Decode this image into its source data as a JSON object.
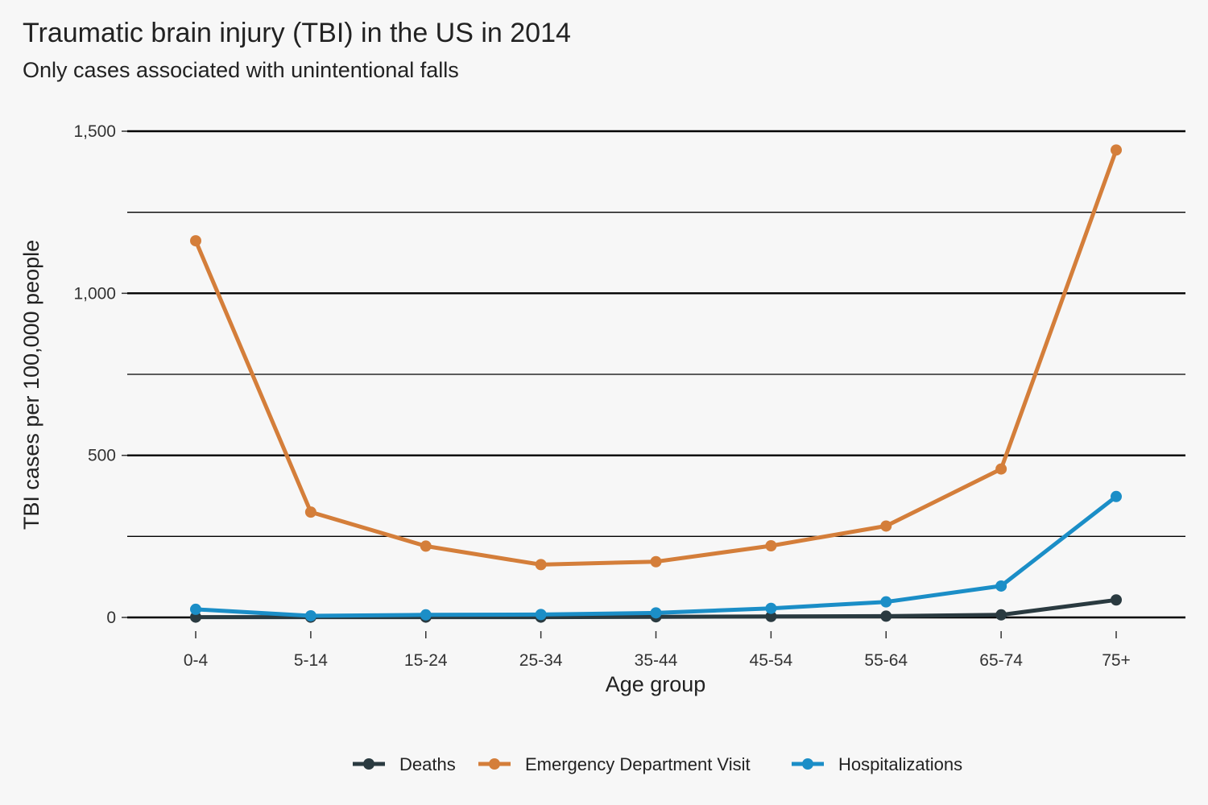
{
  "chart_data": {
    "type": "line",
    "title": "Traumatic brain injury (TBI) in the US in 2014",
    "subtitle": "Only cases associated with unintentional falls",
    "xlabel": "Age group",
    "ylabel": "TBI cases per 100,000 people",
    "categories": [
      "0-4",
      "5-14",
      "15-24",
      "25-34",
      "35-44",
      "45-54",
      "55-64",
      "65-74",
      "75+"
    ],
    "ylim": [
      0,
      1500
    ],
    "yticks": [
      0,
      500,
      1000,
      1500
    ],
    "ytick_labels": [
      "0",
      "500",
      "1,000",
      "1,500"
    ],
    "grid": true,
    "legend_position": "bottom",
    "series": [
      {
        "name": "Deaths",
        "color": "#2a3a40",
        "values": [
          1,
          1,
          1,
          1,
          2,
          3,
          4,
          8,
          54
        ]
      },
      {
        "name": "Emergency Department Visit",
        "color": "#d47e3a",
        "values": [
          1162,
          325,
          220,
          163,
          172,
          221,
          282,
          458,
          1442
        ]
      },
      {
        "name": "Hospitalizations",
        "color": "#1b8ec7",
        "values": [
          25,
          5,
          8,
          9,
          14,
          28,
          48,
          97,
          373
        ]
      }
    ]
  }
}
